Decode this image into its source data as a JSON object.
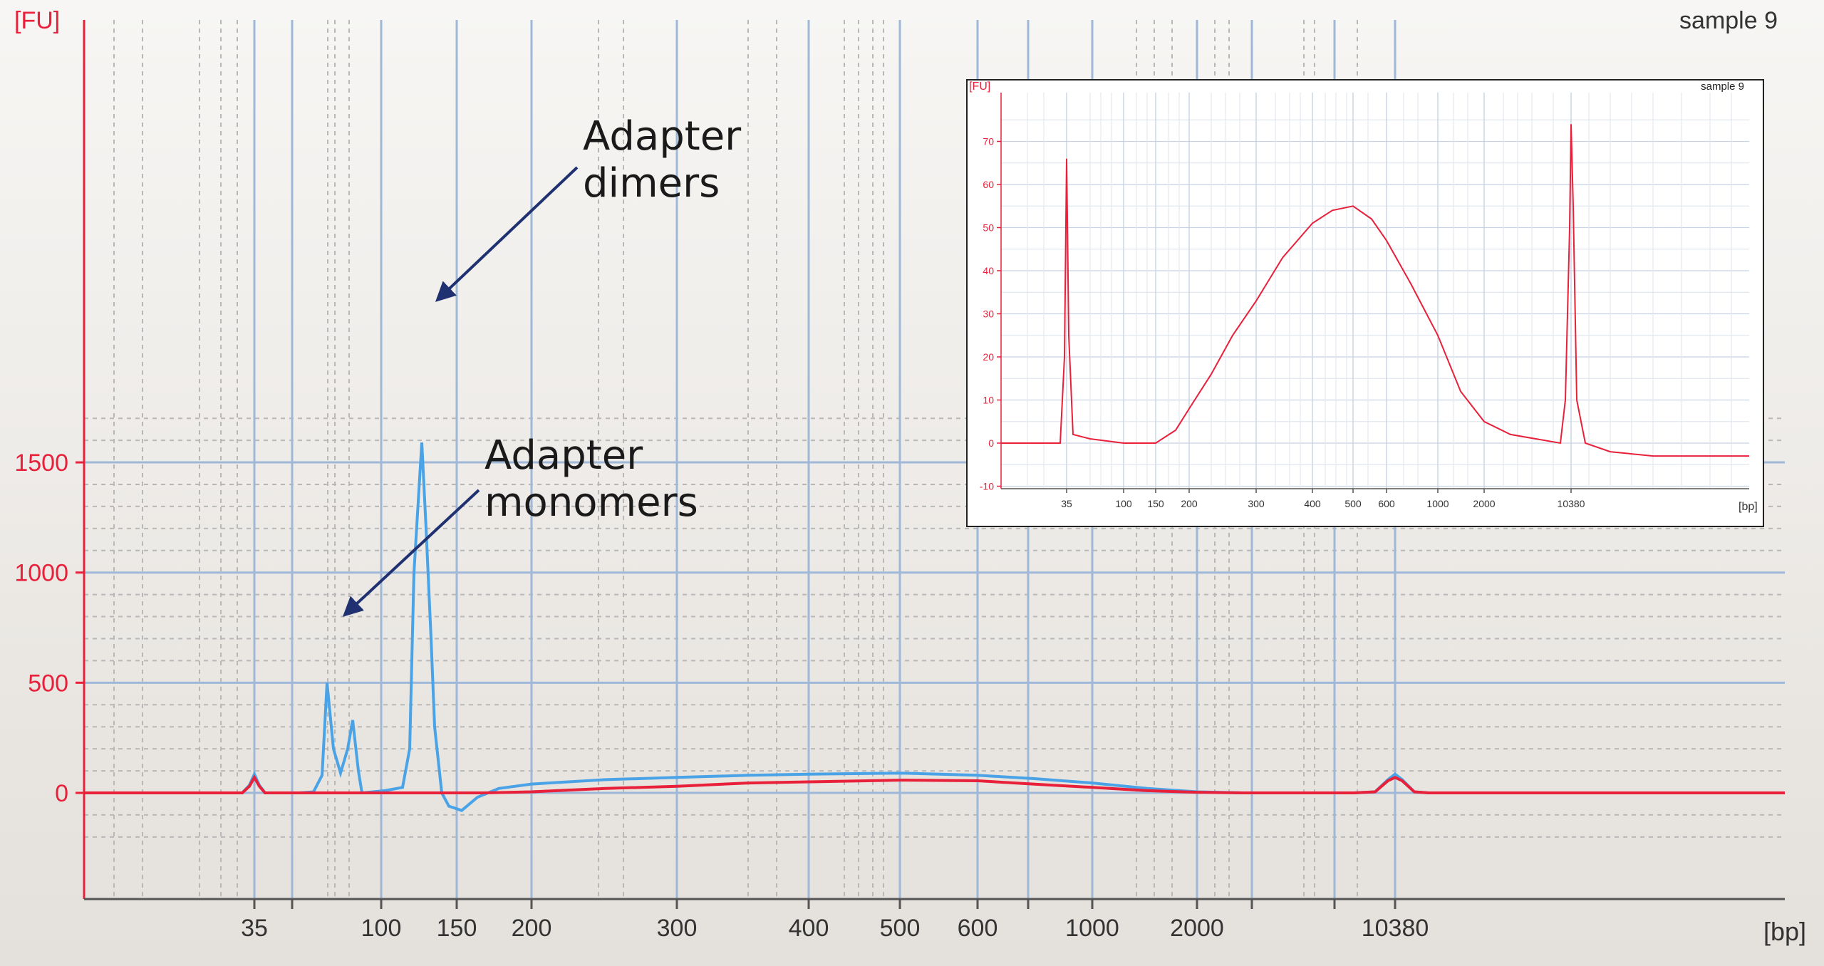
{
  "sample_label": "sample 9",
  "colors": {
    "accent_red": "#e8203a",
    "blue_trace": "#4aa3e6",
    "grid_major": "#9fb8d8",
    "grid_minor": "#b8b8b8",
    "arrow": "#1f3170",
    "inset_bg": "#ffffff"
  },
  "annotations": [
    {
      "lines": [
        "Adapter",
        "dimers"
      ]
    },
    {
      "lines": [
        "Adapter",
        "monomers"
      ]
    }
  ],
  "chart_data": [
    {
      "type": "line",
      "ylabel": "[FU]",
      "xlabel": "[bp]",
      "x_ticks": [
        "35",
        "100",
        "150",
        "200",
        "300",
        "400",
        "500",
        "600",
        "1000",
        "2000",
        "10380"
      ],
      "y_ticks": [
        0,
        500,
        1000,
        1500
      ],
      "ylim": [
        -250,
        1750
      ],
      "grid": true,
      "series": [
        {
          "color": "blue",
          "points": [
            [
              "35",
              0
            ],
            [
              "35",
              85
            ],
            [
              "35",
              0
            ],
            [
              "100",
              0
            ],
            [
              "100",
              500
            ],
            [
              "100",
              90
            ],
            [
              "100",
              330
            ],
            [
              "100",
              0
            ],
            [
              "150",
              20
            ],
            [
              "150",
              1590
            ],
            [
              "150",
              1200
            ],
            [
              "150",
              0
            ],
            [
              "150",
              -80
            ],
            [
              "200",
              40
            ],
            [
              "300",
              70
            ],
            [
              "400",
              85
            ],
            [
              "500",
              90
            ],
            [
              "600",
              80
            ],
            [
              "1000",
              45
            ],
            [
              "2000",
              5
            ],
            [
              "10380",
              0
            ],
            [
              "10380",
              85
            ],
            [
              "10380",
              0
            ]
          ]
        },
        {
          "color": "red",
          "points": [
            [
              "35",
              0
            ],
            [
              "35",
              70
            ],
            [
              "35",
              0
            ],
            [
              "150",
              0
            ],
            [
              "200",
              5
            ],
            [
              "300",
              30
            ],
            [
              "400",
              50
            ],
            [
              "500",
              58
            ],
            [
              "600",
              55
            ],
            [
              "1000",
              25
            ],
            [
              "2000",
              3
            ],
            [
              "10380",
              0
            ],
            [
              "10380",
              70
            ],
            [
              "10380",
              0
            ]
          ]
        }
      ]
    },
    {
      "type": "line",
      "title": "sample 9",
      "ylabel": "[FU]",
      "xlabel": "[bp]",
      "x_ticks": [
        "35",
        "100",
        "150",
        "200",
        "300",
        "400",
        "500",
        "600",
        "1000",
        "2000",
        "10380"
      ],
      "y_ticks": [
        -10,
        0,
        10,
        20,
        30,
        40,
        50,
        60,
        70
      ],
      "ylim": [
        -12,
        80
      ],
      "grid": true,
      "series": [
        {
          "color": "red",
          "points": [
            [
              "35",
              0
            ],
            [
              "35",
              66
            ],
            [
              "35",
              1
            ],
            [
              "100",
              0
            ],
            [
              "150",
              0
            ],
            [
              "200",
              10
            ],
            [
              "300",
              32
            ],
            [
              "400",
              50
            ],
            [
              "500",
              55
            ],
            [
              "600",
              45
            ],
            [
              "1000",
              15
            ],
            [
              "2000",
              2
            ],
            [
              "10380",
              0
            ],
            [
              "10380",
              74
            ],
            [
              "10380",
              -3
            ]
          ]
        }
      ]
    }
  ]
}
